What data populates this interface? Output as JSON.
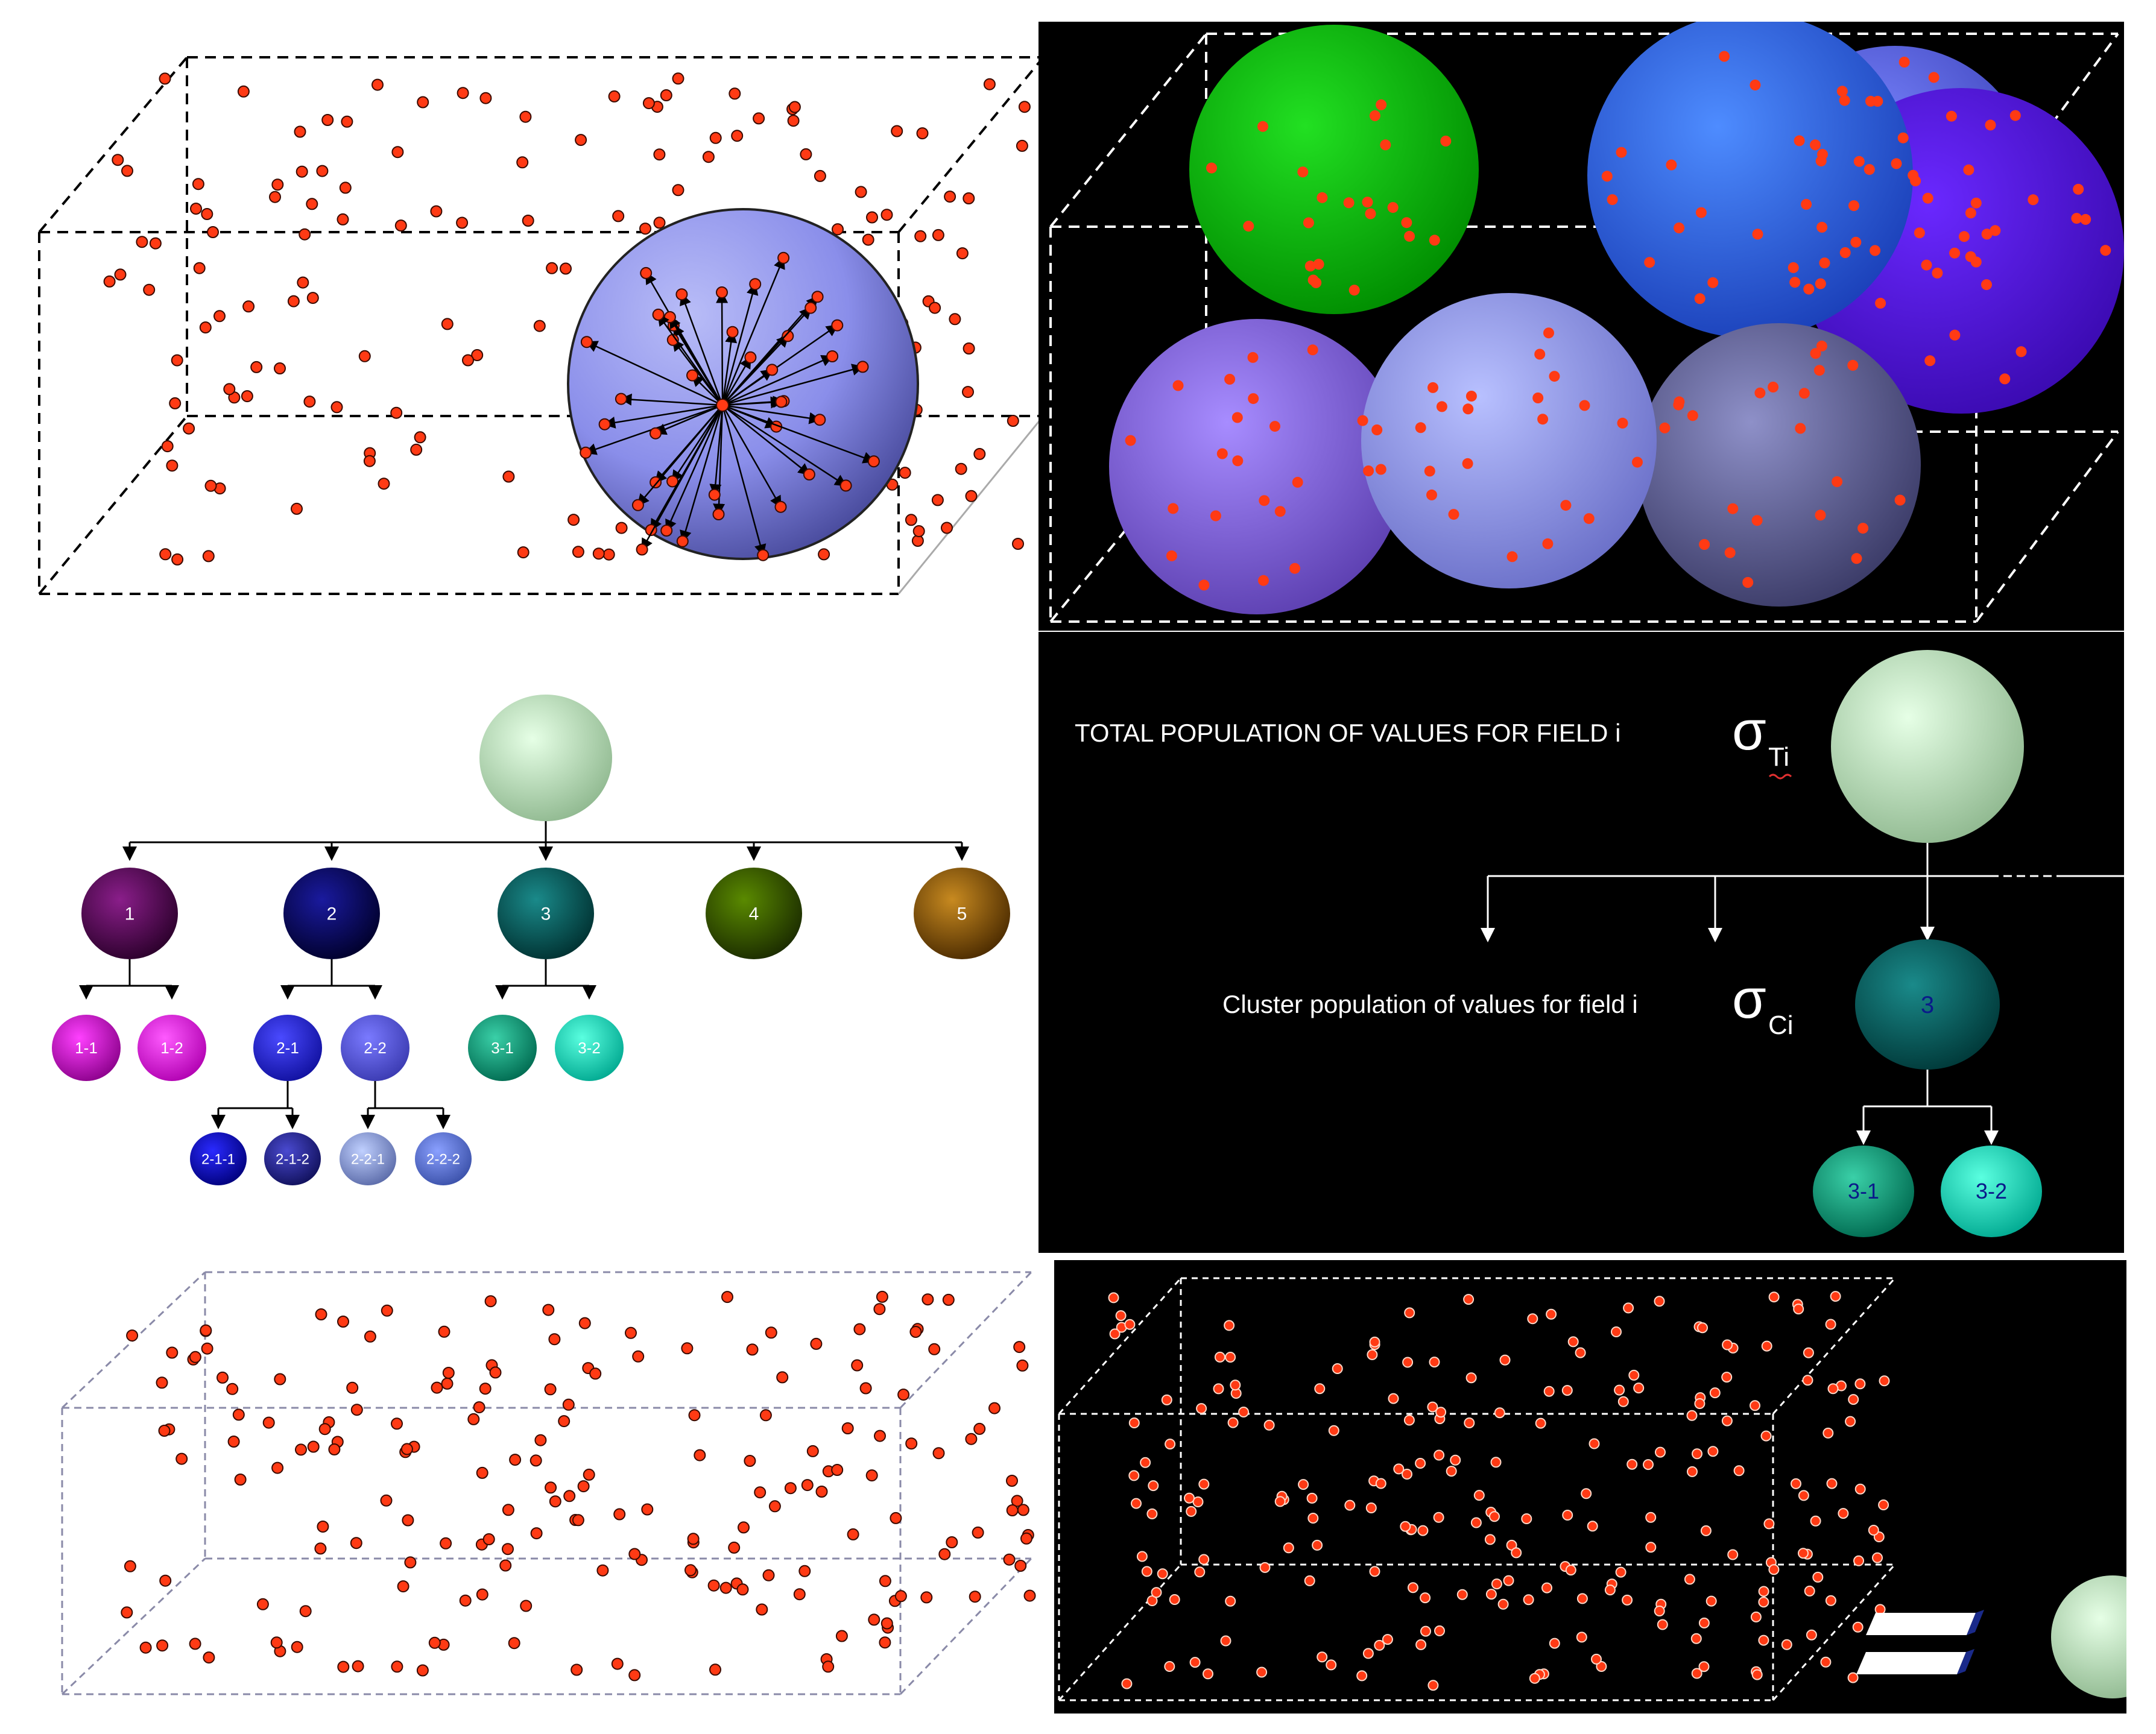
{
  "colors": {
    "dot": "#ff3a14",
    "dot_stroke": "#3a0a00",
    "dark_bg": "#000000",
    "root_sphere": "#c6ecc6"
  },
  "tree": {
    "level1": [
      "1",
      "2",
      "3",
      "4",
      "5"
    ],
    "level2": [
      "1-1",
      "1-2",
      "2-1",
      "2-2",
      "3-1",
      "3-2"
    ],
    "level3": [
      "2-1-1",
      "2-1-2",
      "2-2-1",
      "2-2-2"
    ]
  },
  "legend": {
    "total_label": "TOTAL POPULATION OF VALUES FOR FIELD i",
    "total_symbol": "σ",
    "total_subscript": "Ti",
    "cluster_label": "Cluster population of values for field i",
    "cluster_symbol": "σ",
    "cluster_subscript": "Ci",
    "cluster_node": "3",
    "child_a": "3-1",
    "child_b": "3-2"
  }
}
